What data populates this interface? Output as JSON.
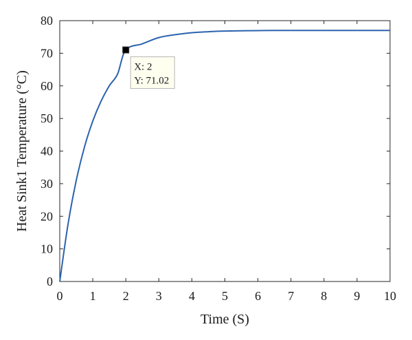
{
  "chart_data": {
    "type": "line",
    "xlabel": "Time (S)",
    "ylabel": "Heat Sink1 Temperature (°C)",
    "xlim": [
      0,
      10
    ],
    "ylim": [
      0,
      80
    ],
    "xticks": [
      "0",
      "1",
      "2",
      "3",
      "4",
      "5",
      "6",
      "7",
      "8",
      "9",
      "10"
    ],
    "yticks": [
      "0",
      "10",
      "20",
      "30",
      "40",
      "50",
      "60",
      "70",
      "80"
    ],
    "grid": false,
    "series": [
      {
        "color": "#2a62ad",
        "x": [
          0,
          0.25,
          0.5,
          0.75,
          1,
          1.25,
          1.5,
          1.75,
          2,
          2.5,
          3,
          3.5,
          4,
          4.5,
          5,
          6,
          7,
          8,
          9,
          10
        ],
        "y": [
          0,
          17.5,
          31.0,
          41.3,
          49.2,
          55.3,
          60.0,
          63.6,
          71.02,
          72.9,
          74.8,
          75.7,
          76.3,
          76.6,
          76.8,
          76.95,
          77.0,
          77.0,
          77.0,
          77.0
        ]
      }
    ],
    "datatip": {
      "x": 2,
      "y": 71.02,
      "x_text": "X: 2",
      "y_text": "Y: 71.02"
    }
  }
}
